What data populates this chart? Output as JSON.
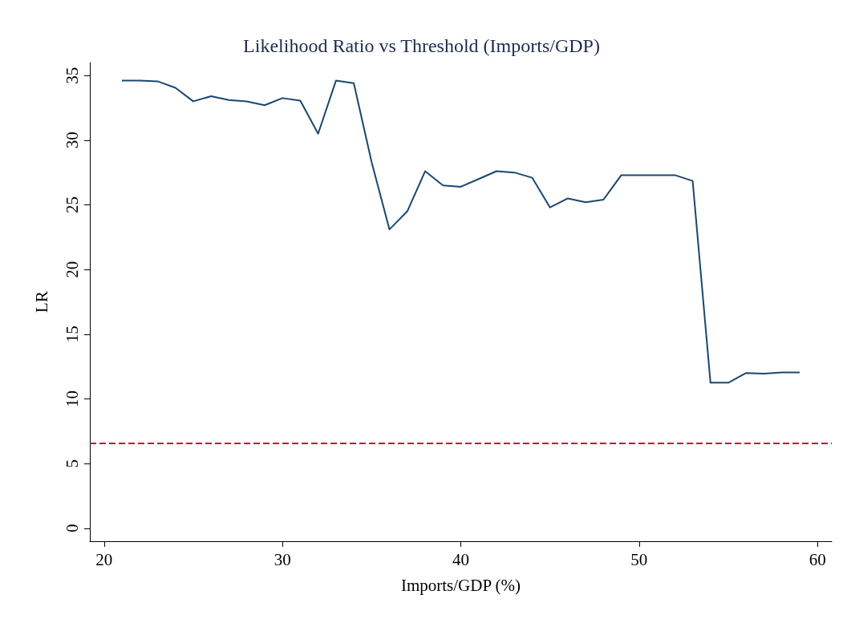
{
  "chart_data": {
    "type": "line",
    "title": "Likelihood Ratio vs Threshold (Imports/GDP)",
    "xlabel": "Imports/GDP (%)",
    "ylabel": "LR",
    "x": [
      21,
      22,
      23,
      24,
      25,
      26,
      27,
      28,
      29,
      30,
      31,
      32,
      33,
      34,
      35,
      36,
      37,
      38,
      39,
      40,
      41,
      42,
      43,
      44,
      45,
      46,
      47,
      48,
      49,
      50,
      51,
      52,
      53,
      54,
      55,
      56,
      57,
      58,
      59
    ],
    "series": [
      {
        "color": "#1a476f",
        "values": [
          34.6,
          34.6,
          34.55,
          34.05,
          33.0,
          33.4,
          33.1,
          33.0,
          32.7,
          33.25,
          33.05,
          30.5,
          34.6,
          34.4,
          28.3,
          23.1,
          24.5,
          27.6,
          26.5,
          26.4,
          27.0,
          27.6,
          27.5,
          27.1,
          24.8,
          25.5,
          25.2,
          25.4,
          27.3,
          27.3,
          27.3,
          27.3,
          26.85,
          11.25,
          11.25,
          12.0,
          11.95,
          12.05,
          12.05
        ]
      }
    ],
    "xlim": [
      19.2,
      60.8
    ],
    "xticks": [
      20,
      30,
      40,
      50,
      60
    ],
    "ylim": [
      -1,
      36
    ],
    "yticks": [
      0,
      5,
      10,
      15,
      20,
      25,
      30,
      35
    ],
    "ref_lines": [
      {
        "axis": "y",
        "value": 6.6,
        "color": "#c8102e",
        "line_style": "dashed"
      }
    ],
    "grid": false,
    "marker": "none",
    "line_style": "solid"
  }
}
